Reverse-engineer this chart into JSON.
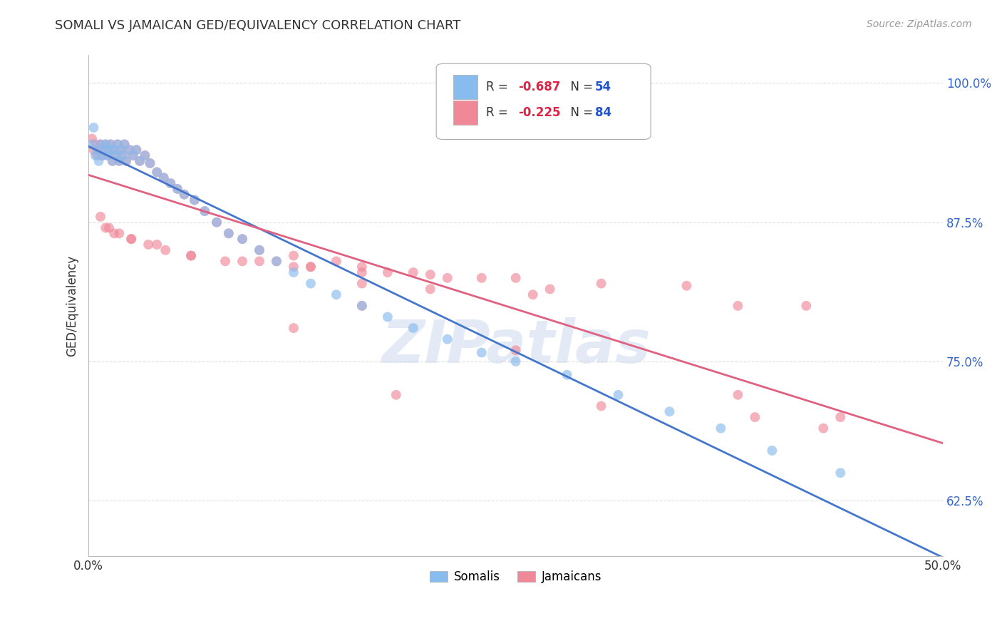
{
  "title": "SOMALI VS JAMAICAN GED/EQUIVALENCY CORRELATION CHART",
  "source": "Source: ZipAtlas.com",
  "ylabel": "GED/Equivalency",
  "xlim": [
    0.0,
    0.5
  ],
  "ylim": [
    0.575,
    1.025
  ],
  "xticks": [
    0.0,
    0.1,
    0.2,
    0.3,
    0.4,
    0.5
  ],
  "xticklabels": [
    "0.0%",
    "",
    "",
    "",
    "",
    "50.0%"
  ],
  "yticks": [
    0.625,
    0.75,
    0.875,
    1.0
  ],
  "yticklabels": [
    "62.5%",
    "75.0%",
    "87.5%",
    "100.0%"
  ],
  "somali_color": "#88bbee",
  "jamaican_color": "#f08898",
  "somali_line_color": "#4477cc",
  "jamaican_line_color": "#e06080",
  "somali_R": -0.687,
  "somali_N": 54,
  "jamaican_R": -0.225,
  "jamaican_N": 84,
  "legend_R_color": "#dd2244",
  "legend_N_color": "#2255cc",
  "somali_x": [
    0.002,
    0.003,
    0.004,
    0.005,
    0.006,
    0.007,
    0.008,
    0.009,
    0.01,
    0.011,
    0.012,
    0.013,
    0.014,
    0.015,
    0.016,
    0.017,
    0.018,
    0.019,
    0.02,
    0.021,
    0.022,
    0.024,
    0.026,
    0.028,
    0.03,
    0.033,
    0.036,
    0.04,
    0.044,
    0.048,
    0.052,
    0.056,
    0.062,
    0.068,
    0.075,
    0.082,
    0.09,
    0.1,
    0.11,
    0.12,
    0.13,
    0.145,
    0.16,
    0.175,
    0.19,
    0.21,
    0.23,
    0.25,
    0.28,
    0.31,
    0.34,
    0.37,
    0.4,
    0.44
  ],
  "somali_y": [
    0.945,
    0.96,
    0.935,
    0.94,
    0.93,
    0.945,
    0.935,
    0.94,
    0.945,
    0.935,
    0.94,
    0.945,
    0.93,
    0.94,
    0.935,
    0.945,
    0.93,
    0.94,
    0.935,
    0.945,
    0.93,
    0.94,
    0.935,
    0.94,
    0.93,
    0.935,
    0.928,
    0.92,
    0.915,
    0.91,
    0.905,
    0.9,
    0.895,
    0.885,
    0.875,
    0.865,
    0.86,
    0.85,
    0.84,
    0.83,
    0.82,
    0.81,
    0.8,
    0.79,
    0.78,
    0.77,
    0.758,
    0.75,
    0.738,
    0.72,
    0.705,
    0.69,
    0.67,
    0.65
  ],
  "jamaican_x": [
    0.002,
    0.003,
    0.004,
    0.005,
    0.006,
    0.007,
    0.008,
    0.009,
    0.01,
    0.011,
    0.012,
    0.013,
    0.014,
    0.015,
    0.016,
    0.017,
    0.018,
    0.019,
    0.02,
    0.021,
    0.022,
    0.024,
    0.026,
    0.028,
    0.03,
    0.033,
    0.036,
    0.04,
    0.044,
    0.048,
    0.052,
    0.056,
    0.062,
    0.068,
    0.075,
    0.082,
    0.09,
    0.1,
    0.11,
    0.12,
    0.13,
    0.145,
    0.16,
    0.175,
    0.19,
    0.21,
    0.23,
    0.007,
    0.012,
    0.018,
    0.025,
    0.035,
    0.045,
    0.06,
    0.08,
    0.1,
    0.13,
    0.16,
    0.2,
    0.25,
    0.3,
    0.35,
    0.16,
    0.27,
    0.38,
    0.42,
    0.01,
    0.015,
    0.025,
    0.04,
    0.06,
    0.09,
    0.12,
    0.16,
    0.2,
    0.26,
    0.18,
    0.12,
    0.38,
    0.44,
    0.3,
    0.25,
    0.43,
    0.39
  ],
  "jamaican_y": [
    0.95,
    0.94,
    0.945,
    0.935,
    0.94,
    0.945,
    0.935,
    0.94,
    0.945,
    0.935,
    0.94,
    0.945,
    0.93,
    0.94,
    0.935,
    0.945,
    0.93,
    0.94,
    0.935,
    0.945,
    0.93,
    0.94,
    0.935,
    0.94,
    0.93,
    0.935,
    0.928,
    0.92,
    0.915,
    0.91,
    0.905,
    0.9,
    0.895,
    0.885,
    0.875,
    0.865,
    0.86,
    0.85,
    0.84,
    0.845,
    0.835,
    0.84,
    0.835,
    0.83,
    0.83,
    0.825,
    0.825,
    0.88,
    0.87,
    0.865,
    0.86,
    0.855,
    0.85,
    0.845,
    0.84,
    0.84,
    0.835,
    0.83,
    0.828,
    0.825,
    0.82,
    0.818,
    0.8,
    0.815,
    0.8,
    0.8,
    0.87,
    0.865,
    0.86,
    0.855,
    0.845,
    0.84,
    0.835,
    0.82,
    0.815,
    0.81,
    0.72,
    0.78,
    0.72,
    0.7,
    0.71,
    0.76,
    0.69,
    0.7
  ],
  "background_color": "#ffffff",
  "grid_color": "#cccccc",
  "watermark_text": "ZIPatlas",
  "watermark_color": "#ccd8ee",
  "watermark_alpha": 0.55
}
